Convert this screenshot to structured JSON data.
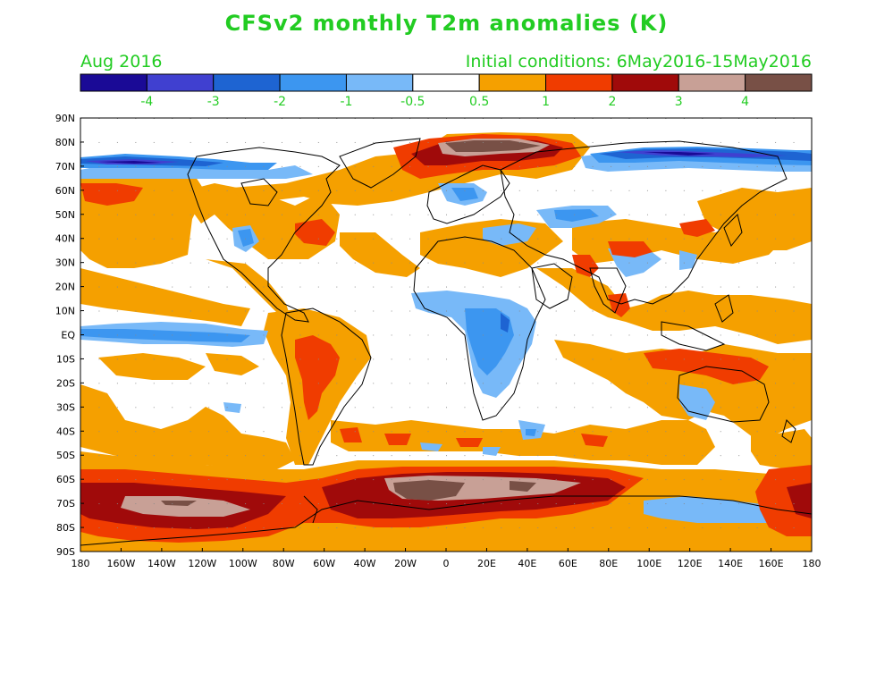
{
  "title": "CFSv2 monthly T2m anomalies (K)",
  "valid_month": "Aug 2016",
  "initial_conditions": "Initial conditions: 6May2016-15May2016",
  "colorbar": {
    "colors": [
      "#1a0a96",
      "#4040d0",
      "#1e64d2",
      "#3c96f0",
      "#78b9f8",
      "#ffffff",
      "#f5a000",
      "#f03c00",
      "#a00a0a",
      "#c8a096",
      "#785046"
    ],
    "labels": [
      "-4",
      "-3",
      "-2",
      "-1",
      "-0.5",
      "0.5",
      "1",
      "2",
      "3",
      "4"
    ]
  },
  "map": {
    "lat_labels": [
      "90N",
      "80N",
      "70N",
      "60N",
      "50N",
      "40N",
      "30N",
      "20N",
      "10N",
      "EQ",
      "10S",
      "20S",
      "30S",
      "40S",
      "50S",
      "60S",
      "70S",
      "80S",
      "90S"
    ],
    "lon_labels": [
      "180",
      "160W",
      "140W",
      "120W",
      "100W",
      "80W",
      "60W",
      "40W",
      "20W",
      "0",
      "20E",
      "40E",
      "60E",
      "80E",
      "100E",
      "120E",
      "140E",
      "160E",
      "180"
    ]
  },
  "chart_data": {
    "type": "heatmap",
    "variable": "T2m anomaly",
    "units": "K",
    "xlim": [
      -180,
      180
    ],
    "ylim": [
      -90,
      90
    ],
    "levels": [
      -4,
      -3,
      -2,
      -1,
      -0.5,
      0.5,
      1,
      2,
      3,
      4
    ]
  }
}
